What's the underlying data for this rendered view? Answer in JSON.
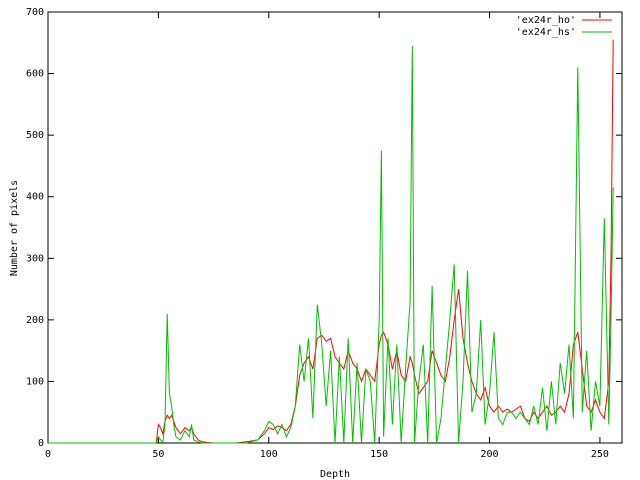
{
  "chart_data": {
    "type": "line",
    "x_label": "Depth",
    "y_label": "Number of pixels",
    "xlim": [
      0,
      260
    ],
    "xticks": [
      0,
      50,
      100,
      150,
      200,
      250
    ],
    "ylim": [
      0,
      700
    ],
    "yticks": [
      0,
      100,
      200,
      300,
      400,
      500,
      600,
      700
    ],
    "legend": "top-right",
    "x": [
      0,
      49,
      50,
      51,
      52,
      53,
      54,
      55,
      56,
      57,
      58,
      60,
      62,
      64,
      65,
      66,
      68,
      70,
      72,
      75,
      80,
      85,
      90,
      95,
      98,
      100,
      102,
      104,
      106,
      108,
      110,
      112,
      114,
      116,
      118,
      120,
      122,
      124,
      126,
      128,
      130,
      132,
      134,
      136,
      138,
      140,
      142,
      144,
      146,
      148,
      150,
      151,
      152,
      154,
      156,
      158,
      160,
      162,
      164,
      165,
      166,
      168,
      170,
      172,
      174,
      176,
      178,
      180,
      182,
      184,
      186,
      188,
      190,
      192,
      194,
      196,
      198,
      200,
      202,
      204,
      206,
      208,
      210,
      212,
      214,
      216,
      218,
      220,
      222,
      224,
      226,
      228,
      230,
      232,
      234,
      236,
      238,
      240,
      242,
      244,
      246,
      248,
      250,
      252,
      254,
      255,
      256
    ],
    "series": [
      {
        "name": "'ex24r_ho'",
        "color": "#ff0000",
        "values": [
          0,
          0,
          30,
          25,
          15,
          35,
          45,
          40,
          45,
          35,
          25,
          15,
          25,
          20,
          25,
          15,
          5,
          2,
          1,
          0,
          0,
          0,
          2,
          5,
          15,
          25,
          22,
          28,
          25,
          20,
          30,
          60,
          110,
          130,
          140,
          120,
          170,
          175,
          165,
          170,
          140,
          130,
          120,
          150,
          130,
          120,
          100,
          120,
          110,
          100,
          160,
          175,
          180,
          160,
          120,
          150,
          110,
          100,
          140,
          130,
          110,
          80,
          90,
          100,
          150,
          130,
          110,
          100,
          140,
          200,
          250,
          170,
          130,
          100,
          80,
          70,
          90,
          60,
          50,
          60,
          50,
          55,
          50,
          55,
          60,
          40,
          35,
          50,
          40,
          50,
          60,
          45,
          50,
          60,
          50,
          80,
          160,
          180,
          120,
          60,
          50,
          70,
          50,
          40,
          100,
          300,
          655
        ]
      },
      {
        "name": "'ex24r_hs'",
        "color": "#00c000",
        "values": [
          0,
          0,
          10,
          5,
          0,
          30,
          210,
          80,
          60,
          30,
          10,
          5,
          20,
          10,
          30,
          5,
          2,
          0,
          0,
          0,
          0,
          0,
          0,
          5,
          20,
          35,
          30,
          15,
          30,
          10,
          25,
          60,
          160,
          100,
          170,
          40,
          225,
          160,
          60,
          150,
          0,
          140,
          0,
          170,
          0,
          130,
          0,
          120,
          100,
          0,
          200,
          475,
          10,
          170,
          30,
          160,
          0,
          120,
          230,
          645,
          0,
          100,
          160,
          0,
          255,
          0,
          40,
          120,
          200,
          290,
          0,
          100,
          280,
          50,
          80,
          200,
          30,
          80,
          180,
          40,
          30,
          50,
          50,
          40,
          50,
          40,
          30,
          60,
          30,
          90,
          20,
          100,
          30,
          130,
          80,
          160,
          40,
          610,
          50,
          150,
          20,
          100,
          60,
          365,
          30,
          200,
          415
        ]
      }
    ]
  }
}
